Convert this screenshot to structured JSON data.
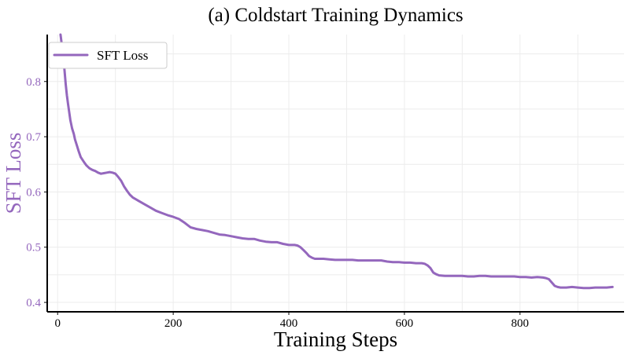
{
  "chart_data": {
    "type": "line",
    "title": "(a) Coldstart Training Dynamics",
    "xlabel": "Training Steps",
    "ylabel": "SFT Loss",
    "xlim": [
      -18,
      980
    ],
    "ylim": [
      0.383,
      0.885
    ],
    "x_ticks": [
      0,
      200,
      400,
      600,
      800
    ],
    "y_ticks": [
      0.4,
      0.5,
      0.6,
      0.7,
      0.8
    ],
    "grid": true,
    "legend_position": "top-left",
    "colors": {
      "series": "#9467bd",
      "ylabel": "#9467bd",
      "axis": "#000000"
    },
    "series": [
      {
        "name": "SFT Loss",
        "x": [
          5,
          8,
          10,
          12,
          14,
          16,
          18,
          20,
          22,
          25,
          28,
          30,
          33,
          36,
          40,
          45,
          50,
          55,
          60,
          65,
          70,
          75,
          80,
          85,
          90,
          95,
          100,
          105,
          110,
          115,
          120,
          125,
          130,
          140,
          150,
          160,
          170,
          180,
          190,
          200,
          210,
          220,
          230,
          240,
          250,
          260,
          270,
          280,
          290,
          300,
          310,
          320,
          330,
          340,
          350,
          360,
          370,
          380,
          390,
          400,
          405,
          410,
          415,
          420,
          425,
          430,
          435,
          440,
          445,
          450,
          460,
          470,
          480,
          490,
          500,
          510,
          520,
          530,
          540,
          550,
          560,
          570,
          580,
          590,
          600,
          610,
          620,
          625,
          630,
          635,
          640,
          645,
          650,
          655,
          660,
          670,
          680,
          690,
          700,
          710,
          720,
          730,
          740,
          750,
          760,
          770,
          780,
          790,
          800,
          810,
          820,
          830,
          840,
          845,
          850,
          855,
          860,
          865,
          870,
          880,
          890,
          900,
          910,
          920,
          930,
          940,
          950,
          960
        ],
        "y": [
          0.885,
          0.86,
          0.84,
          0.82,
          0.795,
          0.775,
          0.76,
          0.745,
          0.73,
          0.715,
          0.705,
          0.695,
          0.685,
          0.675,
          0.663,
          0.655,
          0.648,
          0.643,
          0.64,
          0.638,
          0.635,
          0.633,
          0.634,
          0.635,
          0.636,
          0.635,
          0.633,
          0.627,
          0.62,
          0.61,
          0.602,
          0.595,
          0.59,
          0.584,
          0.578,
          0.572,
          0.566,
          0.562,
          0.558,
          0.555,
          0.551,
          0.544,
          0.536,
          0.533,
          0.531,
          0.529,
          0.526,
          0.523,
          0.522,
          0.52,
          0.518,
          0.516,
          0.515,
          0.515,
          0.512,
          0.51,
          0.509,
          0.509,
          0.506,
          0.504,
          0.504,
          0.504,
          0.503,
          0.5,
          0.495,
          0.49,
          0.484,
          0.481,
          0.479,
          0.479,
          0.479,
          0.478,
          0.477,
          0.477,
          0.477,
          0.477,
          0.476,
          0.476,
          0.476,
          0.476,
          0.476,
          0.474,
          0.473,
          0.473,
          0.472,
          0.472,
          0.471,
          0.471,
          0.471,
          0.47,
          0.467,
          0.462,
          0.454,
          0.451,
          0.449,
          0.448,
          0.448,
          0.448,
          0.448,
          0.447,
          0.447,
          0.448,
          0.448,
          0.447,
          0.447,
          0.447,
          0.447,
          0.447,
          0.446,
          0.446,
          0.445,
          0.446,
          0.445,
          0.444,
          0.442,
          0.436,
          0.43,
          0.428,
          0.427,
          0.427,
          0.428,
          0.427,
          0.426,
          0.426,
          0.427,
          0.427,
          0.427,
          0.428
        ]
      }
    ]
  }
}
